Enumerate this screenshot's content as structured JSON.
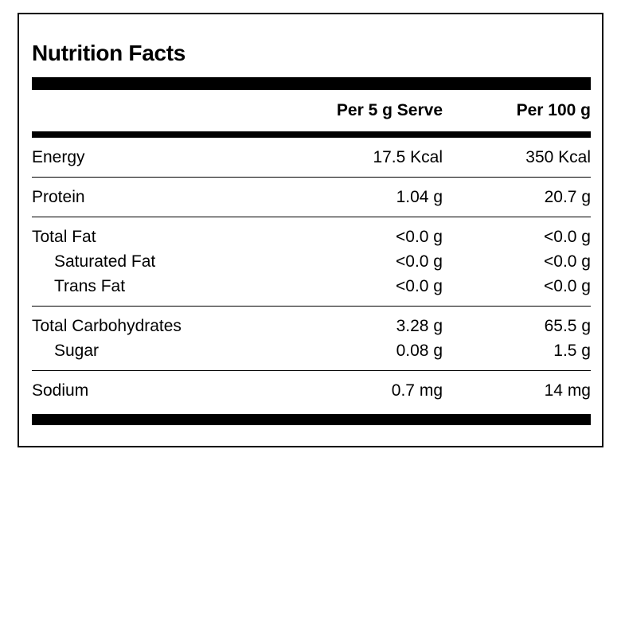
{
  "label": {
    "title": "Nutrition Facts",
    "header": {
      "col_serve": "Per 5 g Serve",
      "col_100g": "Per 100 g"
    },
    "rows": [
      {
        "name": "Energy",
        "per_serve": "17.5 Kcal",
        "per_100g": "350 Kcal"
      },
      {
        "name": "Protein",
        "per_serve": "1.04 g",
        "per_100g": "20.7 g"
      },
      {
        "name": "Total Fat",
        "per_serve": "<0.0 g",
        "per_100g": "<0.0 g"
      },
      {
        "name": "Saturated Fat",
        "per_serve": "<0.0 g",
        "per_100g": "<0.0 g"
      },
      {
        "name": "Trans Fat",
        "per_serve": "<0.0 g",
        "per_100g": "<0.0 g"
      },
      {
        "name": "Total Carbohydrates",
        "per_serve": "3.28 g",
        "per_100g": "65.5 g"
      },
      {
        "name": "Sugar",
        "per_serve": "0.08 g",
        "per_100g": "1.5 g"
      },
      {
        "name": "Sodium",
        "per_serve": "0.7 mg",
        "per_100g": "14 mg"
      }
    ],
    "colors": {
      "text": "#000000",
      "background": "#ffffff",
      "rule": "#000000"
    }
  }
}
